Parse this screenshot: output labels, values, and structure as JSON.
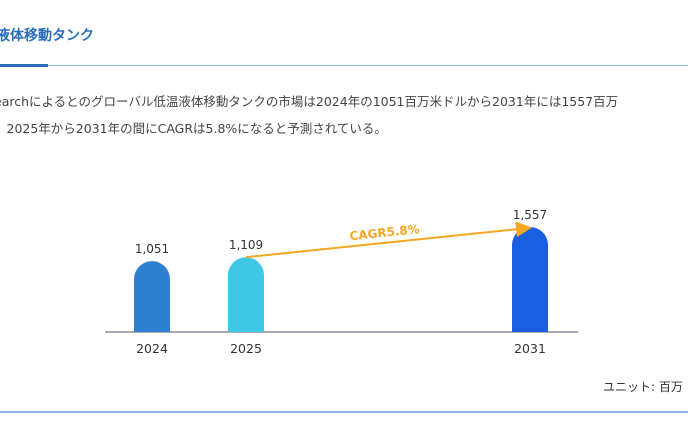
{
  "header": {
    "title": "液体移動タンク"
  },
  "description": {
    "line1": "earchによるとのグローバル低温液体移動タンクの市場は2024年の1051百万米ドルから2031年には1557百万",
    "line2": "、2025年から2031年の間にCAGRは5.8%になると予測されている。"
  },
  "chart_data": {
    "type": "bar",
    "categories": [
      "2024",
      "2025",
      "2031"
    ],
    "values": [
      1051,
      1109,
      1557
    ],
    "value_labels": [
      "1,051",
      "1,109",
      "1,557"
    ],
    "colors": [
      "#2f7fd3",
      "#3ec8e6",
      "#1a5fdf"
    ],
    "annotation": {
      "text": "CAGR5.8%",
      "from": "2025",
      "to": "2031",
      "color": "#f5a623"
    },
    "ylim": [
      0,
      1557
    ],
    "grid": false,
    "unit_label": "ユニット: 百万"
  }
}
